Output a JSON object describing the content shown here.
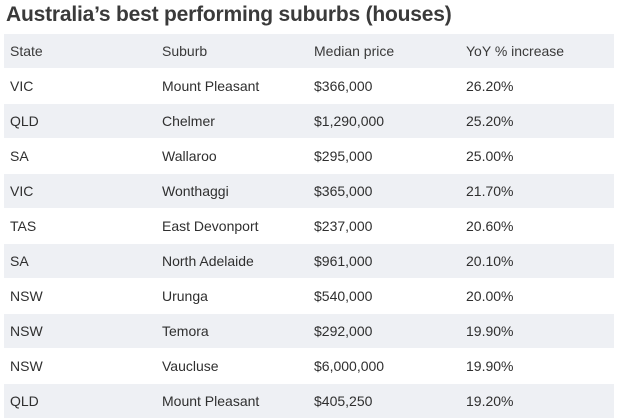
{
  "title": "Australia’s best performing suburbs (houses)",
  "table": {
    "columns": [
      "State",
      "Suburb",
      "Median price",
      "YoY % increase"
    ],
    "rows": [
      [
        "VIC",
        "Mount Pleasant",
        "$366,000",
        "26.20%"
      ],
      [
        "QLD",
        "Chelmer",
        "$1,290,000",
        "25.20%"
      ],
      [
        "SA",
        "Wallaroo",
        "$295,000",
        "25.00%"
      ],
      [
        "VIC",
        "Wonthaggi",
        "$365,000",
        "21.70%"
      ],
      [
        "TAS",
        "East Devonport",
        "$237,000",
        "20.60%"
      ],
      [
        "SA",
        "North Adelaide",
        "$961,000",
        "20.10%"
      ],
      [
        "NSW",
        "Urunga",
        "$540,000",
        "20.00%"
      ],
      [
        "NSW",
        "Temora",
        "$292,000",
        "19.90%"
      ],
      [
        "NSW",
        "Vaucluse",
        "$6,000,000",
        "19.90%"
      ],
      [
        "QLD",
        "Mount Pleasant",
        "$405,250",
        "19.20%"
      ]
    ]
  },
  "colors": {
    "stripe": "#eef0f4",
    "text": "#2f2f2f"
  }
}
